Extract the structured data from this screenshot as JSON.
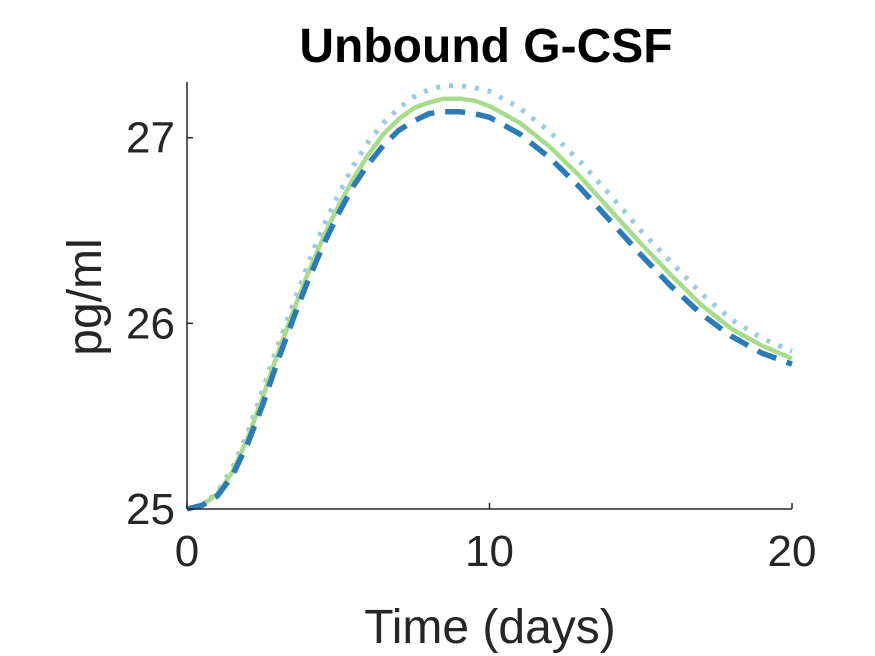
{
  "chart_data": {
    "type": "line",
    "title": "Unbound G-CSF",
    "xlabel": "Time (days)",
    "ylabel": "pg/ml",
    "xlim": [
      0,
      20
    ],
    "ylim": [
      25,
      27.3
    ],
    "xticks": [
      0,
      10,
      20
    ],
    "yticks": [
      25,
      26,
      27
    ],
    "grid": false,
    "legend": "none",
    "x": [
      0,
      0.5,
      1,
      1.5,
      2,
      2.5,
      3,
      3.5,
      4,
      4.5,
      5,
      5.5,
      6,
      6.5,
      7,
      7.5,
      8,
      8.5,
      9,
      9.5,
      10,
      11,
      12,
      13,
      14,
      15,
      16,
      17,
      18,
      19,
      20
    ],
    "series": [
      {
        "style": "dotted",
        "color": "#9ecae1",
        "values": [
          25.0,
          25.02,
          25.09,
          25.22,
          25.41,
          25.64,
          25.88,
          26.1,
          26.32,
          26.52,
          26.69,
          26.85,
          26.98,
          27.08,
          27.16,
          27.22,
          27.26,
          27.28,
          27.28,
          27.27,
          27.25,
          27.16,
          27.03,
          26.87,
          26.69,
          26.5,
          26.33,
          26.16,
          26.02,
          25.92,
          25.85
        ]
      },
      {
        "style": "solid",
        "color": "#a8dc8c",
        "values": [
          25.0,
          25.02,
          25.08,
          25.2,
          25.38,
          25.6,
          25.84,
          26.06,
          26.27,
          26.46,
          26.63,
          26.78,
          26.91,
          27.02,
          27.1,
          27.16,
          27.19,
          27.21,
          27.21,
          27.2,
          27.17,
          27.08,
          26.95,
          26.79,
          26.61,
          26.43,
          26.26,
          26.1,
          25.97,
          25.88,
          25.81
        ]
      },
      {
        "style": "dashed",
        "color": "#2c7bb6",
        "values": [
          25.0,
          25.02,
          25.07,
          25.18,
          25.35,
          25.56,
          25.8,
          26.02,
          26.23,
          26.42,
          26.59,
          26.74,
          26.86,
          26.96,
          27.04,
          27.09,
          27.13,
          27.14,
          27.14,
          27.13,
          27.11,
          27.02,
          26.89,
          26.73,
          26.55,
          26.37,
          26.2,
          26.05,
          25.93,
          25.84,
          25.78
        ]
      }
    ]
  }
}
